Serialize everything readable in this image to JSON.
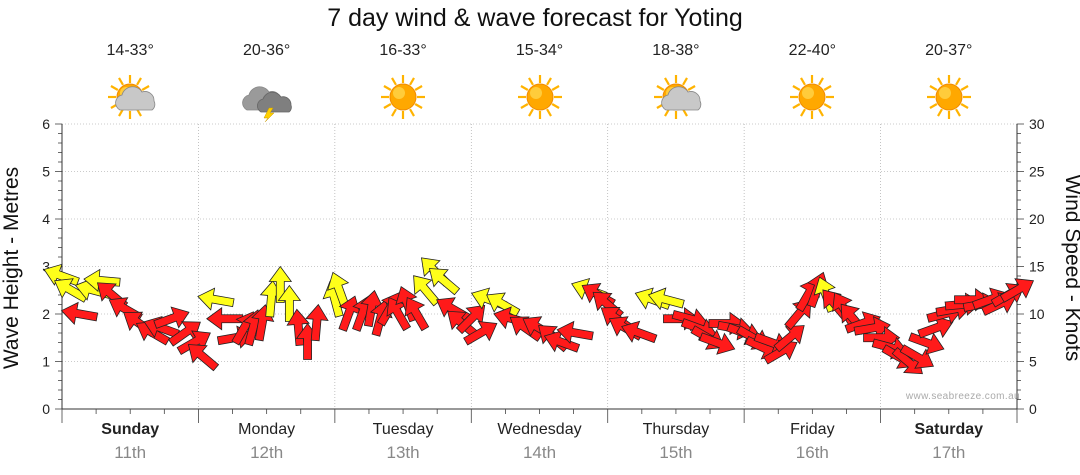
{
  "chart_data": {
    "type": "scatter",
    "title": "7 day wind & wave forecast for Yoting",
    "ylabel_left": "Wave Height - Metres",
    "ylabel_right": "Wind Speed - Knots",
    "ylim_left": [
      0,
      6
    ],
    "ylim_right": [
      0,
      30
    ],
    "yticks_left": [
      "0",
      "1",
      "2",
      "3",
      "4",
      "5",
      "6"
    ],
    "yticks_right": [
      "0",
      "5",
      "10",
      "15",
      "20",
      "25",
      "30"
    ],
    "grid": true,
    "days": [
      {
        "name": "Sunday",
        "date": "11th",
        "temp": "14-33°",
        "weather": "partly-cloudy",
        "bold": true
      },
      {
        "name": "Monday",
        "date": "12th",
        "temp": "20-36°",
        "weather": "storm",
        "bold": false
      },
      {
        "name": "Tuesday",
        "date": "13th",
        "temp": "16-33°",
        "weather": "sunny",
        "bold": false
      },
      {
        "name": "Wednesday",
        "date": "14th",
        "temp": "15-34°",
        "weather": "sunny",
        "bold": false
      },
      {
        "name": "Thursday",
        "date": "15th",
        "temp": "18-38°",
        "weather": "partly-cloudy",
        "bold": false
      },
      {
        "name": "Friday",
        "date": "16th",
        "temp": "22-40°",
        "weather": "sunny",
        "bold": false
      },
      {
        "name": "Saturday",
        "date": "17th",
        "temp": "20-37°",
        "weather": "sunny",
        "bold": true
      }
    ],
    "series": [
      {
        "name": "Wind",
        "units": "knots",
        "axis": "right",
        "direction_note": "arrow angle in degrees, 0 = pointing right, positive = pointing up",
        "points": [
          {
            "t": 0.0,
            "speed": 14.0,
            "angle": 160,
            "color": "yellow"
          },
          {
            "t": 0.1,
            "speed": 12.5,
            "angle": 150,
            "color": "yellow"
          },
          {
            "t": 0.2,
            "speed": 10.0,
            "angle": 170,
            "color": "red"
          },
          {
            "t": 0.35,
            "speed": 12.5,
            "angle": 165,
            "color": "yellow"
          },
          {
            "t": 0.45,
            "speed": 13.5,
            "angle": 175,
            "color": "yellow"
          },
          {
            "t": 0.55,
            "speed": 12.0,
            "angle": 140,
            "color": "red"
          },
          {
            "t": 0.7,
            "speed": 10.5,
            "angle": 150,
            "color": "red"
          },
          {
            "t": 0.85,
            "speed": 9.0,
            "angle": 145,
            "color": "red"
          },
          {
            "t": 1.0,
            "speed": 8.0,
            "angle": 150,
            "color": "red"
          },
          {
            "t": 1.1,
            "speed": 8.5,
            "angle": 160,
            "color": "red"
          },
          {
            "t": 1.2,
            "speed": 9.5,
            "angle": 20,
            "color": "red"
          },
          {
            "t": 1.35,
            "speed": 8.0,
            "angle": 35,
            "color": "red"
          },
          {
            "t": 1.45,
            "speed": 7.0,
            "angle": 30,
            "color": "red"
          },
          {
            "t": 1.55,
            "speed": 5.5,
            "angle": 140,
            "color": "red"
          },
          {
            "t": 1.7,
            "speed": 11.5,
            "angle": 170,
            "color": "yellow"
          },
          {
            "t": 1.8,
            "speed": 9.5,
            "angle": 180,
            "color": "red"
          },
          {
            "t": 1.9,
            "speed": 7.5,
            "angle": 10,
            "color": "red"
          },
          {
            "t": 2.0,
            "speed": 8.5,
            "angle": 60,
            "color": "red"
          },
          {
            "t": 2.1,
            "speed": 8.5,
            "angle": 75,
            "color": "red"
          },
          {
            "t": 2.2,
            "speed": 9.0,
            "angle": 80,
            "color": "red"
          },
          {
            "t": 2.3,
            "speed": 11.5,
            "angle": 85,
            "color": "yellow"
          },
          {
            "t": 2.4,
            "speed": 13.0,
            "angle": 90,
            "color": "yellow"
          },
          {
            "t": 2.5,
            "speed": 11.0,
            "angle": 90,
            "color": "yellow"
          },
          {
            "t": 2.6,
            "speed": 8.5,
            "angle": 95,
            "color": "red"
          },
          {
            "t": 2.7,
            "speed": 7.0,
            "angle": 90,
            "color": "red"
          },
          {
            "t": 2.8,
            "speed": 9.0,
            "angle": 85,
            "color": "red"
          },
          {
            "t": 3.0,
            "speed": 11.5,
            "angle": 105,
            "color": "yellow"
          },
          {
            "t": 3.05,
            "speed": 12.5,
            "angle": 110,
            "color": "yellow"
          },
          {
            "t": 3.15,
            "speed": 10.0,
            "angle": 70,
            "color": "red"
          },
          {
            "t": 3.3,
            "speed": 10.0,
            "angle": 70,
            "color": "red"
          },
          {
            "t": 3.4,
            "speed": 10.5,
            "angle": 80,
            "color": "red"
          },
          {
            "t": 3.5,
            "speed": 9.5,
            "angle": 75,
            "color": "red"
          },
          {
            "t": 3.6,
            "speed": 10.5,
            "angle": 60,
            "color": "red"
          },
          {
            "t": 3.7,
            "speed": 10.0,
            "angle": 120,
            "color": "red"
          },
          {
            "t": 3.8,
            "speed": 11.0,
            "angle": 110,
            "color": "red"
          },
          {
            "t": 3.9,
            "speed": 10.0,
            "angle": 120,
            "color": "red"
          },
          {
            "t": 4.0,
            "speed": 12.5,
            "angle": 130,
            "color": "yellow"
          },
          {
            "t": 4.1,
            "speed": 14.5,
            "angle": 135,
            "color": "yellow"
          },
          {
            "t": 4.2,
            "speed": 13.5,
            "angle": 140,
            "color": "yellow"
          },
          {
            "t": 4.3,
            "speed": 10.5,
            "angle": 150,
            "color": "red"
          },
          {
            "t": 4.4,
            "speed": 9.0,
            "angle": 140,
            "color": "red"
          },
          {
            "t": 4.5,
            "speed": 9.5,
            "angle": 45,
            "color": "red"
          },
          {
            "t": 4.6,
            "speed": 8.0,
            "angle": 30,
            "color": "red"
          },
          {
            "t": 4.7,
            "speed": 11.5,
            "angle": 160,
            "color": "yellow"
          },
          {
            "t": 4.85,
            "speed": 11.0,
            "angle": 150,
            "color": "yellow"
          },
          {
            "t": 4.95,
            "speed": 9.5,
            "angle": 165,
            "color": "red"
          },
          {
            "t": 5.1,
            "speed": 8.5,
            "angle": 145,
            "color": "red"
          },
          {
            "t": 5.25,
            "speed": 8.5,
            "angle": 150,
            "color": "red"
          },
          {
            "t": 5.4,
            "speed": 7.5,
            "angle": 140,
            "color": "red"
          },
          {
            "t": 5.5,
            "speed": 7.0,
            "angle": 160,
            "color": "red"
          },
          {
            "t": 5.65,
            "speed": 8.0,
            "angle": 170,
            "color": "red"
          },
          {
            "t": 5.8,
            "speed": 12.5,
            "angle": 160,
            "color": "yellow"
          },
          {
            "t": 5.9,
            "speed": 12.0,
            "angle": 150,
            "color": "red"
          },
          {
            "t": 6.0,
            "speed": 11.0,
            "angle": 140,
            "color": "red"
          },
          {
            "t": 6.1,
            "speed": 9.5,
            "angle": 145,
            "color": "red"
          },
          {
            "t": 6.2,
            "speed": 8.5,
            "angle": 150,
            "color": "red"
          },
          {
            "t": 6.35,
            "speed": 8.0,
            "angle": 160,
            "color": "red"
          },
          {
            "t": 6.5,
            "speed": 11.5,
            "angle": 160,
            "color": "yellow"
          },
          {
            "t": 6.65,
            "speed": 11.5,
            "angle": 165,
            "color": "yellow"
          },
          {
            "t": 6.8,
            "speed": 9.5,
            "angle": 0,
            "color": "red"
          },
          {
            "t": 6.9,
            "speed": 9.5,
            "angle": 345,
            "color": "red"
          },
          {
            "t": 7.0,
            "speed": 8.5,
            "angle": 340,
            "color": "red"
          },
          {
            "t": 7.1,
            "speed": 7.5,
            "angle": 330,
            "color": "red"
          },
          {
            "t": 7.2,
            "speed": 7.0,
            "angle": 340,
            "color": "red"
          },
          {
            "t": 7.3,
            "speed": 9.0,
            "angle": 0,
            "color": "red"
          },
          {
            "t": 7.4,
            "speed": 8.5,
            "angle": 350,
            "color": "red"
          },
          {
            "t": 7.5,
            "speed": 8.0,
            "angle": 340,
            "color": "red"
          },
          {
            "t": 7.6,
            "speed": 7.5,
            "angle": 330,
            "color": "red"
          },
          {
            "t": 7.7,
            "speed": 6.5,
            "angle": 335,
            "color": "red"
          },
          {
            "t": 7.8,
            "speed": 7.0,
            "angle": 340,
            "color": "red"
          },
          {
            "t": 7.9,
            "speed": 6.0,
            "angle": 30,
            "color": "red"
          },
          {
            "t": 8.0,
            "speed": 7.5,
            "angle": 40,
            "color": "red"
          },
          {
            "t": 8.1,
            "speed": 10.0,
            "angle": 50,
            "color": "red"
          },
          {
            "t": 8.2,
            "speed": 12.0,
            "angle": 60,
            "color": "red"
          },
          {
            "t": 8.3,
            "speed": 12.5,
            "angle": 70,
            "color": "red"
          },
          {
            "t": 8.4,
            "speed": 12.0,
            "angle": 110,
            "color": "yellow"
          },
          {
            "t": 8.5,
            "speed": 11.0,
            "angle": 130,
            "color": "red"
          },
          {
            "t": 8.6,
            "speed": 10.5,
            "angle": 120,
            "color": "red"
          },
          {
            "t": 8.7,
            "speed": 9.5,
            "angle": 130,
            "color": "red"
          },
          {
            "t": 8.8,
            "speed": 9.0,
            "angle": 20,
            "color": "red"
          },
          {
            "t": 8.9,
            "speed": 8.5,
            "angle": 10,
            "color": "red"
          },
          {
            "t": 9.0,
            "speed": 7.5,
            "angle": 0,
            "color": "red"
          },
          {
            "t": 9.1,
            "speed": 6.5,
            "angle": 345,
            "color": "red"
          },
          {
            "t": 9.2,
            "speed": 5.5,
            "angle": 330,
            "color": "red"
          },
          {
            "t": 9.3,
            "speed": 5.0,
            "angle": 320,
            "color": "red"
          },
          {
            "t": 9.4,
            "speed": 5.5,
            "angle": 330,
            "color": "red"
          },
          {
            "t": 9.5,
            "speed": 7.0,
            "angle": 340,
            "color": "red"
          },
          {
            "t": 9.6,
            "speed": 8.5,
            "angle": 20,
            "color": "red"
          },
          {
            "t": 9.7,
            "speed": 10.0,
            "angle": 15,
            "color": "red"
          },
          {
            "t": 9.8,
            "speed": 10.5,
            "angle": 10,
            "color": "red"
          },
          {
            "t": 9.9,
            "speed": 11.0,
            "angle": 5,
            "color": "red"
          },
          {
            "t": 10.0,
            "speed": 11.5,
            "angle": 0,
            "color": "red"
          },
          {
            "t": 10.1,
            "speed": 11.0,
            "angle": 10,
            "color": "red"
          },
          {
            "t": 10.2,
            "speed": 11.5,
            "angle": 20,
            "color": "red"
          },
          {
            "t": 10.3,
            "speed": 11.0,
            "angle": 25,
            "color": "red"
          },
          {
            "t": 10.4,
            "speed": 12.0,
            "angle": 30,
            "color": "red"
          },
          {
            "t": 10.5,
            "speed": 12.5,
            "angle": 30,
            "color": "red"
          }
        ]
      }
    ]
  },
  "credit": "www.seabreeze.com.au"
}
